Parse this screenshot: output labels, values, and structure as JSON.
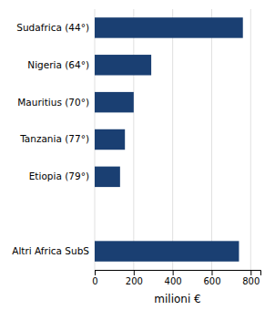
{
  "chart_data": {
    "type": "bar",
    "orientation": "horizontal",
    "categories": [
      "Sudafrica (44°)",
      "Nigeria (64°)",
      "Mauritius (70°)",
      "Tanzania (77°)",
      "Etiopia (79°)",
      null,
      "Altri Africa SubS"
    ],
    "values": [
      760,
      290,
      200,
      155,
      130,
      null,
      740
    ],
    "color": "#1a3f72",
    "xlabel": "milioni €",
    "xlim": [
      0,
      850
    ],
    "xticks": [
      0,
      200,
      400,
      600,
      800
    ],
    "grid": true
  }
}
